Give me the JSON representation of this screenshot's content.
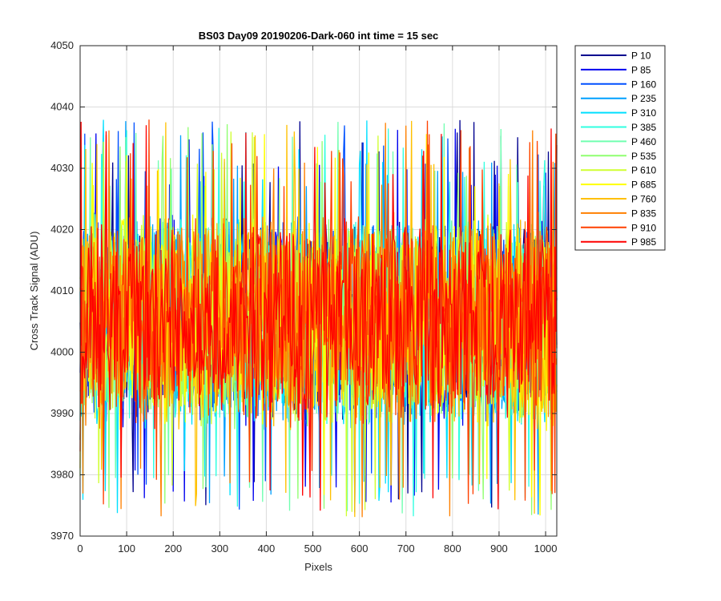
{
  "chart_data": {
    "type": "line",
    "title": "BS03 Day09 20190206-Dark-060 int time = 15 sec",
    "xlabel": "Pixels",
    "ylabel": "Cross Track Signal (ADU)",
    "xlim": [
      0,
      1024
    ],
    "ylim": [
      3970,
      4050
    ],
    "xticks": [
      0,
      100,
      200,
      300,
      400,
      500,
      600,
      700,
      800,
      900,
      1000
    ],
    "yticks": [
      3970,
      3980,
      3990,
      4000,
      4010,
      4020,
      4030,
      4040,
      4050
    ],
    "grid": true,
    "legend_position": "outside-top-right",
    "series_style": "noise around 4003 ADU, approximately uniform 3985-4022 with spikes to 3971-4043",
    "series": [
      {
        "name": "P 10",
        "color": "#00008f"
      },
      {
        "name": "P 85",
        "color": "#0000ef"
      },
      {
        "name": "P 160",
        "color": "#0050ff"
      },
      {
        "name": "P 235",
        "color": "#00a0ff"
      },
      {
        "name": "P 310",
        "color": "#00dfff"
      },
      {
        "name": "P 385",
        "color": "#30ffe0"
      },
      {
        "name": "P 460",
        "color": "#70ffb0"
      },
      {
        "name": "P 535",
        "color": "#90ff70"
      },
      {
        "name": "P 610",
        "color": "#d0ff30"
      },
      {
        "name": "P 685",
        "color": "#ffff00"
      },
      {
        "name": "P 760",
        "color": "#ffc000"
      },
      {
        "name": "P 835",
        "color": "#ff8000"
      },
      {
        "name": "P 910",
        "color": "#ff4000"
      },
      {
        "name": "P 985",
        "color": "#ff0000"
      }
    ]
  }
}
